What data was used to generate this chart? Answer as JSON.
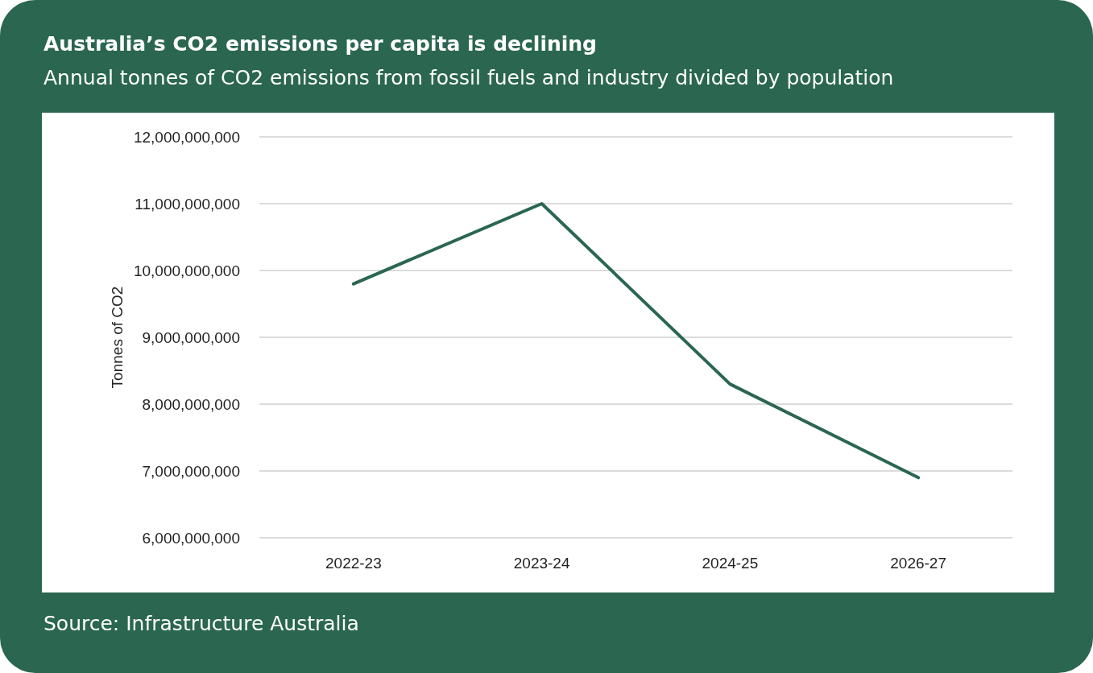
{
  "chart_data": {
    "type": "line",
    "title": "Australia’s CO2 emissions per capita is declining",
    "subtitle": "Annual tonnes of CO2 emissions from fossil fuels and industry divided by population",
    "ylabel": "Tonnes of CO2",
    "annotations": [
      "Source: Infrastructure Australia"
    ],
    "categories": [
      "2022-23",
      "2023-24",
      "2024-25",
      "2026-27"
    ],
    "series": [
      {
        "color": "#2a6650",
        "values": [
          9800000000,
          11000000000,
          8300000000,
          6900000000
        ]
      }
    ],
    "ylim": [
      6000000000,
      12000000000
    ],
    "yticks": [
      {
        "value": 6000000000,
        "label": "6,000,000,000"
      },
      {
        "value": 7000000000,
        "label": "7,000,000,000"
      },
      {
        "value": 8000000000,
        "label": "8,000,000,000"
      },
      {
        "value": 9000000000,
        "label": "9,000,000,000"
      },
      {
        "value": 10000000000,
        "label": "10,000,000,000"
      },
      {
        "value": 11000000000,
        "label": "11,000,000,000"
      },
      {
        "value": 12000000000,
        "label": "12,000,000,000"
      }
    ],
    "grid": "y",
    "marker": "none",
    "line_style": "solid"
  }
}
